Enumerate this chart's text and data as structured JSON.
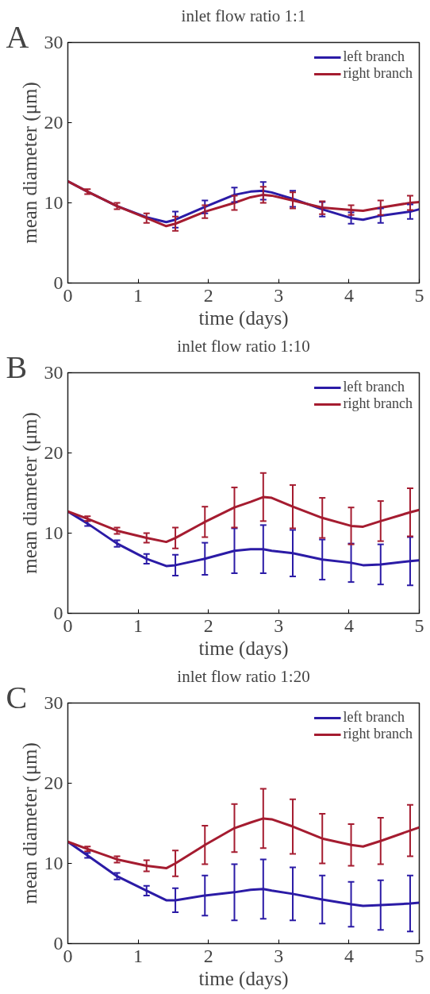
{
  "chart_data": [
    {
      "type": "line",
      "title": "inlet flow ratio 1:1",
      "xlabel": "time (days)",
      "ylabel": "mean diameter (μm)",
      "annotations": [
        "A"
      ],
      "legend": "top right",
      "grid": false,
      "xlim": [
        0,
        5
      ],
      "ylim": [
        0,
        30
      ],
      "xticks": [
        0,
        1,
        2,
        3,
        4,
        5
      ],
      "yticks": [
        0,
        10,
        20,
        30
      ],
      "x": [
        0,
        0.28,
        0.7,
        1.12,
        1.4,
        1.53,
        1.95,
        2.37,
        2.6,
        2.78,
        2.9,
        3.2,
        3.62,
        4.03,
        4.2,
        4.45,
        4.87,
        5.0
      ],
      "series": [
        {
          "name": "left branch",
          "color": "#2b1ba6",
          "values": [
            12.7,
            11.4,
            9.6,
            8.2,
            7.6,
            7.9,
            9.5,
            11.0,
            11.4,
            11.5,
            11.3,
            10.5,
            9.2,
            8.1,
            7.9,
            8.4,
            8.9,
            9.2
          ],
          "errors": [
            null,
            null,
            null,
            null,
            null,
            1.0,
            0.8,
            0.9,
            null,
            1.1,
            null,
            1.0,
            0.9,
            0.7,
            null,
            0.9,
            0.9,
            null
          ]
        },
        {
          "name": "right branch",
          "color": "#a51c30",
          "values": [
            12.7,
            11.4,
            9.6,
            8.1,
            7.1,
            7.4,
            8.9,
            10.0,
            10.7,
            11.0,
            10.9,
            10.3,
            9.4,
            9.1,
            9.0,
            9.4,
            10.0,
            10.1
          ],
          "errors": [
            null,
            0.3,
            0.4,
            0.6,
            null,
            0.9,
            0.8,
            0.9,
            null,
            1.0,
            null,
            1.0,
            0.8,
            0.6,
            null,
            0.9,
            0.9,
            null
          ]
        }
      ]
    },
    {
      "type": "line",
      "title": "inlet flow ratio 1:10",
      "xlabel": "time (days)",
      "ylabel": "mean diameter (μm)",
      "annotations": [
        "B"
      ],
      "legend": "top right",
      "grid": false,
      "xlim": [
        0,
        5
      ],
      "ylim": [
        0,
        30
      ],
      "xticks": [
        0,
        1,
        2,
        3,
        4,
        5
      ],
      "yticks": [
        0,
        10,
        20,
        30
      ],
      "x": [
        0,
        0.28,
        0.7,
        1.12,
        1.4,
        1.53,
        1.95,
        2.37,
        2.6,
        2.78,
        2.9,
        3.2,
        3.62,
        4.03,
        4.2,
        4.45,
        4.87,
        5.0
      ],
      "series": [
        {
          "name": "left branch",
          "color": "#2b1ba6",
          "values": [
            12.7,
            11.2,
            8.7,
            6.8,
            5.9,
            6.0,
            6.8,
            7.8,
            8.0,
            8.0,
            7.8,
            7.5,
            6.7,
            6.3,
            6.0,
            6.1,
            6.5,
            6.6
          ],
          "errors": [
            null,
            0.3,
            0.4,
            0.6,
            null,
            1.3,
            2.0,
            2.8,
            null,
            3.0,
            null,
            2.9,
            2.5,
            2.4,
            null,
            2.5,
            3.0,
            null
          ]
        },
        {
          "name": "right branch",
          "color": "#a51c30",
          "values": [
            12.7,
            11.8,
            10.3,
            9.4,
            8.9,
            9.4,
            11.4,
            13.2,
            13.9,
            14.5,
            14.4,
            13.3,
            11.9,
            10.9,
            10.8,
            11.5,
            12.6,
            12.9
          ],
          "errors": [
            null,
            0.3,
            0.4,
            0.6,
            null,
            1.3,
            1.9,
            2.5,
            null,
            3.0,
            null,
            2.7,
            2.5,
            2.3,
            null,
            2.5,
            3.0,
            null
          ]
        }
      ]
    },
    {
      "type": "line",
      "title": "inlet flow ratio 1:20",
      "xlabel": "time (days)",
      "ylabel": "mean diameter (μm)",
      "annotations": [
        "C"
      ],
      "legend": "top right",
      "grid": false,
      "xlim": [
        0,
        5
      ],
      "ylim": [
        0,
        30
      ],
      "xticks": [
        0,
        1,
        2,
        3,
        4,
        5
      ],
      "yticks": [
        0,
        10,
        20,
        30
      ],
      "x": [
        0,
        0.28,
        0.7,
        1.12,
        1.4,
        1.53,
        1.95,
        2.37,
        2.6,
        2.78,
        2.9,
        3.2,
        3.62,
        4.03,
        4.2,
        4.45,
        4.87,
        5.0
      ],
      "series": [
        {
          "name": "left branch",
          "color": "#2b1ba6",
          "values": [
            12.7,
            11.0,
            8.4,
            6.6,
            5.4,
            5.4,
            6.0,
            6.4,
            6.7,
            6.8,
            6.6,
            6.2,
            5.5,
            4.9,
            4.7,
            4.8,
            5.0,
            5.1
          ],
          "errors": [
            null,
            0.3,
            0.4,
            0.6,
            null,
            1.5,
            2.5,
            3.5,
            null,
            3.7,
            null,
            3.3,
            3.0,
            2.8,
            null,
            3.1,
            3.5,
            null
          ]
        },
        {
          "name": "right branch",
          "color": "#a51c30",
          "values": [
            12.7,
            11.8,
            10.5,
            9.7,
            9.4,
            10.0,
            12.3,
            14.4,
            15.1,
            15.6,
            15.5,
            14.6,
            13.1,
            12.3,
            12.1,
            12.8,
            14.1,
            14.5
          ],
          "errors": [
            null,
            0.3,
            0.4,
            0.7,
            null,
            1.6,
            2.4,
            3.0,
            null,
            3.7,
            null,
            3.4,
            3.1,
            2.6,
            null,
            2.9,
            3.2,
            null
          ]
        }
      ]
    }
  ]
}
